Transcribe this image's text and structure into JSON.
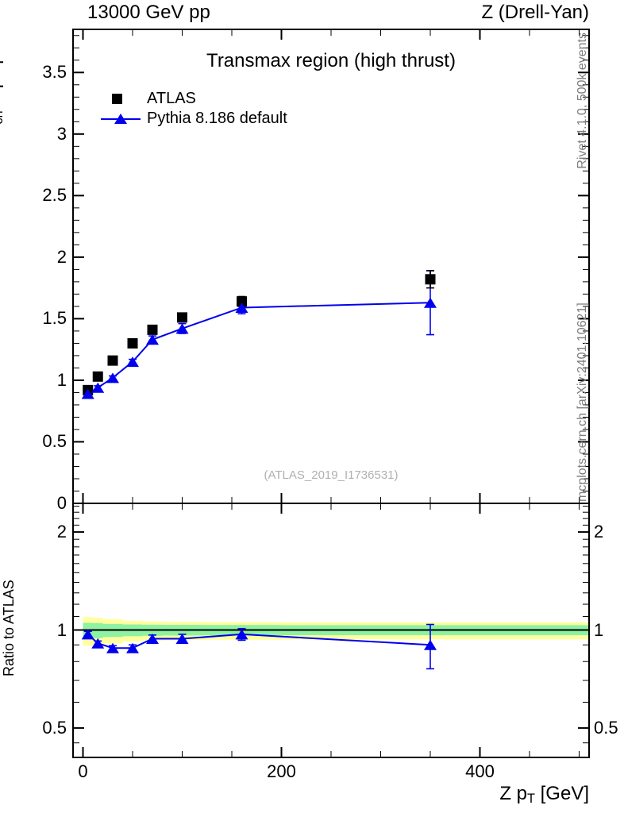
{
  "colors": {
    "accent_blue": "#0000ee",
    "band_yellow": "#ffffa0",
    "band_green": "#8df2a2",
    "gray_text": "#7d7d7d",
    "watermark_gray": "#b0b0b0",
    "frame_black": "#000000"
  },
  "header": {
    "left": "13000 GeV pp",
    "right": "Z (Drell-Yan)"
  },
  "main_panel": {
    "title": "Transmax region (high thrust)",
    "watermark": "(ATLAS_2019_I1736531)",
    "ylabel_parts": [
      {
        "t": "<N"
      },
      {
        "t": "ch",
        "sub": 1
      },
      {
        "t": "/dη dφ>"
      }
    ],
    "legend": [
      {
        "label": "ATLAS",
        "marker": "black-square"
      },
      {
        "label": "Pythia 8.186 default",
        "marker": "blue-line-triangle"
      }
    ],
    "yticks_labeled": [
      0,
      0.5,
      1,
      1.5,
      2,
      2.5,
      3,
      3.5
    ]
  },
  "ratio_panel": {
    "ylabel": "Ratio to ATLAS",
    "yticks_labeled": [
      0.5,
      1,
      2
    ]
  },
  "sidebar_right": {
    "top_text": "Rivet 4.1.0,  500k events",
    "bottom_text": "mcplots.cern.ch [arXiv:2401.10621]"
  },
  "xaxis": {
    "label_parts": [
      {
        "t": "Z p"
      },
      {
        "t": "T",
        "sub": 1
      },
      {
        "t": " [GeV]"
      }
    ],
    "major_ticks": [
      0,
      200,
      400
    ],
    "minor_step": 50,
    "range": [
      -10,
      510
    ]
  },
  "chart_data": [
    {
      "type": "scatter",
      "title": "Transmax region (high thrust)",
      "xlabel": "Z pT [GeV]",
      "ylabel": "<Nch/dη dφ>",
      "xlim": [
        -10,
        510
      ],
      "ylim": [
        0,
        3.85
      ],
      "yticks_major": [
        0.5,
        1,
        1.5,
        2,
        2.5,
        3,
        3.5
      ],
      "yminor_step": 0.1,
      "x": [
        5,
        15,
        30,
        50,
        70,
        100,
        160,
        350
      ],
      "series": [
        {
          "name": "ATLAS",
          "marker": "square",
          "color": "#000000",
          "values": [
            0.92,
            1.03,
            1.16,
            1.3,
            1.41,
            1.51,
            1.64,
            1.82
          ],
          "errors": [
            0.02,
            0.02,
            0.02,
            0.02,
            0.03,
            0.03,
            0.04,
            0.07
          ]
        },
        {
          "name": "Pythia 8.186 default",
          "marker": "triangle",
          "color": "#0000ee",
          "line": true,
          "values": [
            0.89,
            0.94,
            1.02,
            1.15,
            1.33,
            1.42,
            1.59,
            1.63
          ],
          "errors": [
            0.015,
            0.015,
            0.015,
            0.02,
            0.03,
            0.04,
            0.05,
            0.26
          ]
        }
      ]
    },
    {
      "type": "line",
      "ylabel": "Ratio to ATLAS",
      "yscale": "log",
      "ylim": [
        0.405,
        2.44
      ],
      "yticks_major": [
        0.5,
        1,
        2
      ],
      "reference_line": 1,
      "x": [
        5,
        15,
        30,
        50,
        70,
        100,
        160,
        350
      ],
      "series": [
        {
          "name": "Pythia 8.186 default / ATLAS",
          "marker": "triangle",
          "color": "#0000ee",
          "line": true,
          "values": [
            0.97,
            0.91,
            0.88,
            0.88,
            0.94,
            0.94,
            0.97,
            0.9
          ],
          "errors": [
            0.02,
            0.015,
            0.015,
            0.02,
            0.025,
            0.03,
            0.04,
            0.14
          ]
        }
      ],
      "bands": {
        "bin_edges": [
          0,
          10,
          20,
          40,
          60,
          80,
          120,
          200,
          510
        ],
        "yellow_hi": [
          1.095,
          1.09,
          1.08,
          1.068,
          1.063,
          1.06,
          1.058,
          1.056
        ],
        "yellow_lo": [
          0.895,
          0.898,
          0.908,
          0.922,
          0.928,
          0.931,
          0.933,
          0.936
        ],
        "green_hi": [
          1.052,
          1.05,
          1.044,
          1.04,
          1.038,
          1.037,
          1.036,
          1.035
        ],
        "green_lo": [
          0.942,
          0.944,
          0.952,
          0.957,
          0.96,
          0.962,
          0.963,
          0.964
        ]
      }
    }
  ]
}
